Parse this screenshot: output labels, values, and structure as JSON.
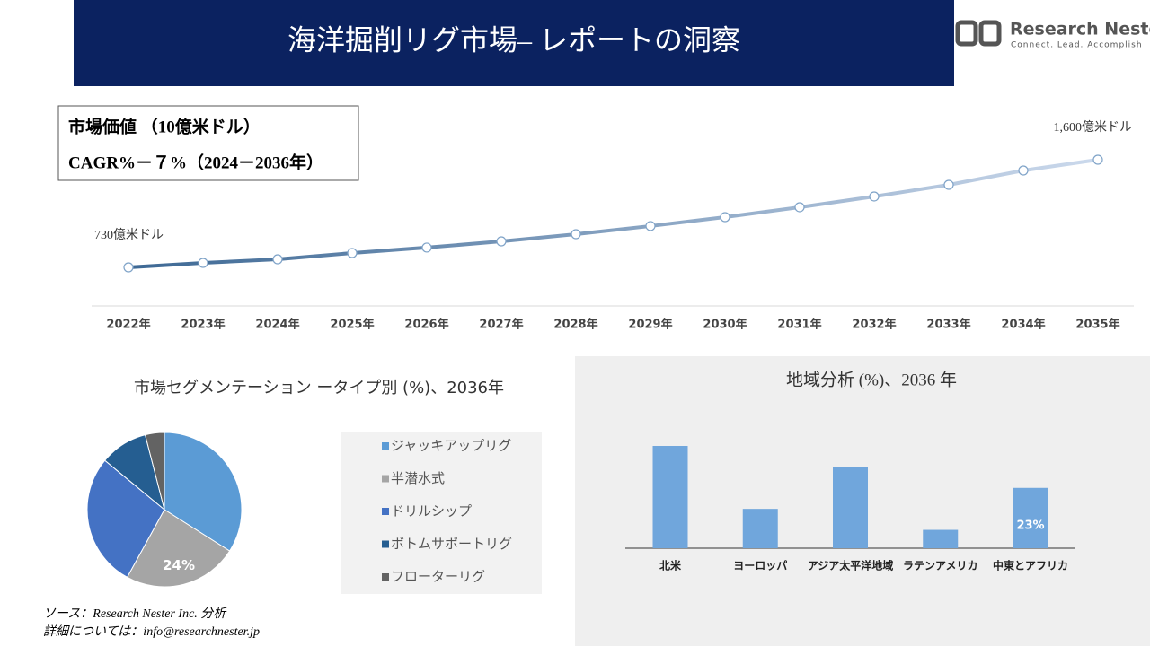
{
  "header": {
    "title": "海洋掘削リグ市場– レポートの洞察",
    "logo_name": "Research Nester",
    "logo_tagline": "Connect. Lead. Accomplish"
  },
  "chart_data": [
    {
      "type": "line",
      "box_title": "市場価値 （10億米ドル）",
      "box_subtitle": "CAGR%－７%（2024－2036年）",
      "categories": [
        "2022年",
        "2023年",
        "2024年",
        "2025年",
        "2026年",
        "2027年",
        "2028年",
        "2029年",
        "2030年",
        "2031年",
        "2032年",
        "2033年",
        "2034年",
        "2035年"
      ],
      "values": [
        730,
        766,
        795,
        846,
        890,
        940,
        998,
        1064,
        1136,
        1216,
        1303,
        1397,
        1513,
        1600
      ],
      "value_labels": [
        "730億米ドル",
        null,
        null,
        null,
        null,
        null,
        null,
        null,
        null,
        null,
        null,
        null,
        null,
        "1,600億米ドル"
      ],
      "color_start": "#3d6894",
      "color_end": "#cbd9ec"
    },
    {
      "type": "pie",
      "title": "市場セグメンテーション ータイプ別 (%)、2036年",
      "categories": [
        "ジャッキアップリグ",
        "半潜水式",
        "ドリルシップ",
        "ボトムサポートリグ",
        "フローターリグ"
      ],
      "values": [
        34,
        24,
        28,
        10,
        4
      ],
      "value_labels": [
        null,
        "24%",
        null,
        null,
        null
      ],
      "colors": [
        "#5b9bd5",
        "#a5a5a5",
        "#4472c4",
        "#255e91",
        "#636363"
      ]
    },
    {
      "type": "bar",
      "title": "地域分析 (%)、2036 年",
      "categories": [
        "北米",
        "ヨーロッパ",
        "アジア太平洋地域",
        "ラテンアメリカ",
        "中東とアフリカ"
      ],
      "values": [
        39,
        15,
        31,
        7,
        23
      ],
      "value_labels": [
        null,
        null,
        null,
        null,
        "23%"
      ],
      "color": "#70a6dc"
    }
  ],
  "footer": {
    "source": "ソース：Research Nester Inc. 分析",
    "contact": "詳細については：info@researchnester.jp"
  }
}
